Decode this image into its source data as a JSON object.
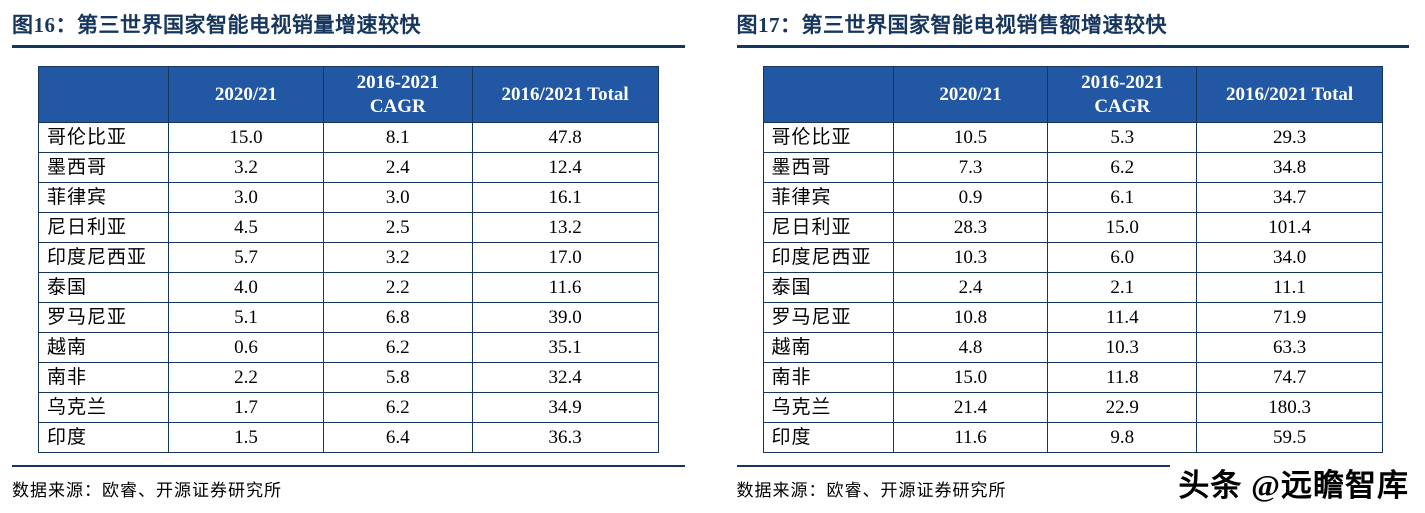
{
  "colors": {
    "title_navy": "#17365D",
    "header_fill_blue": "#2257A4",
    "header_text": "#FFFFFF",
    "border_navy": "#17365D",
    "body_text": "#000000"
  },
  "figures": [
    {
      "title": "图16：第三世界国家智能电视销量增速较快",
      "source": "数据来源：欧睿、开源证券研究所",
      "table": {
        "headers": [
          "",
          "2020/21",
          "2016-2021\nCAGR",
          "2016/2021 Total"
        ],
        "rows": [
          {
            "label": "哥伦比亚",
            "values": [
              "15.0",
              "8.1",
              "47.8"
            ]
          },
          {
            "label": "墨西哥",
            "values": [
              "3.2",
              "2.4",
              "12.4"
            ]
          },
          {
            "label": "菲律宾",
            "values": [
              "3.0",
              "3.0",
              "16.1"
            ]
          },
          {
            "label": "尼日利亚",
            "values": [
              "4.5",
              "2.5",
              "13.2"
            ]
          },
          {
            "label": "印度尼西亚",
            "values": [
              "5.7",
              "3.2",
              "17.0"
            ]
          },
          {
            "label": "泰国",
            "values": [
              "4.0",
              "2.2",
              "11.6"
            ]
          },
          {
            "label": "罗马尼亚",
            "values": [
              "5.1",
              "6.8",
              "39.0"
            ]
          },
          {
            "label": "越南",
            "values": [
              "0.6",
              "6.2",
              "35.1"
            ]
          },
          {
            "label": "南非",
            "values": [
              "2.2",
              "5.8",
              "32.4"
            ]
          },
          {
            "label": "乌克兰",
            "values": [
              "1.7",
              "6.2",
              "34.9"
            ]
          },
          {
            "label": "印度",
            "values": [
              "1.5",
              "6.4",
              "36.3"
            ]
          }
        ]
      }
    },
    {
      "title": "图17：第三世界国家智能电视销售额增速较快",
      "source": "数据来源：欧睿、开源证券研究所",
      "table": {
        "headers": [
          "",
          "2020/21",
          "2016-2021\nCAGR",
          "2016/2021 Total"
        ],
        "rows": [
          {
            "label": "哥伦比亚",
            "values": [
              "10.5",
              "5.3",
              "29.3"
            ]
          },
          {
            "label": "墨西哥",
            "values": [
              "7.3",
              "6.2",
              "34.8"
            ]
          },
          {
            "label": "菲律宾",
            "values": [
              "0.9",
              "6.1",
              "34.7"
            ]
          },
          {
            "label": "尼日利亚",
            "values": [
              "28.3",
              "15.0",
              "101.4"
            ]
          },
          {
            "label": "印度尼西亚",
            "values": [
              "10.3",
              "6.0",
              "34.0"
            ]
          },
          {
            "label": "泰国",
            "values": [
              "2.4",
              "2.1",
              "11.1"
            ]
          },
          {
            "label": "罗马尼亚",
            "values": [
              "10.8",
              "11.4",
              "71.9"
            ]
          },
          {
            "label": "越南",
            "values": [
              "4.8",
              "10.3",
              "63.3"
            ]
          },
          {
            "label": "南非",
            "values": [
              "15.0",
              "11.8",
              "74.7"
            ]
          },
          {
            "label": "乌克兰",
            "values": [
              "21.4",
              "22.9",
              "180.3"
            ]
          },
          {
            "label": "印度",
            "values": [
              "11.6",
              "9.8",
              "59.5"
            ]
          }
        ]
      }
    }
  ],
  "watermark": "头条 @远瞻智库"
}
